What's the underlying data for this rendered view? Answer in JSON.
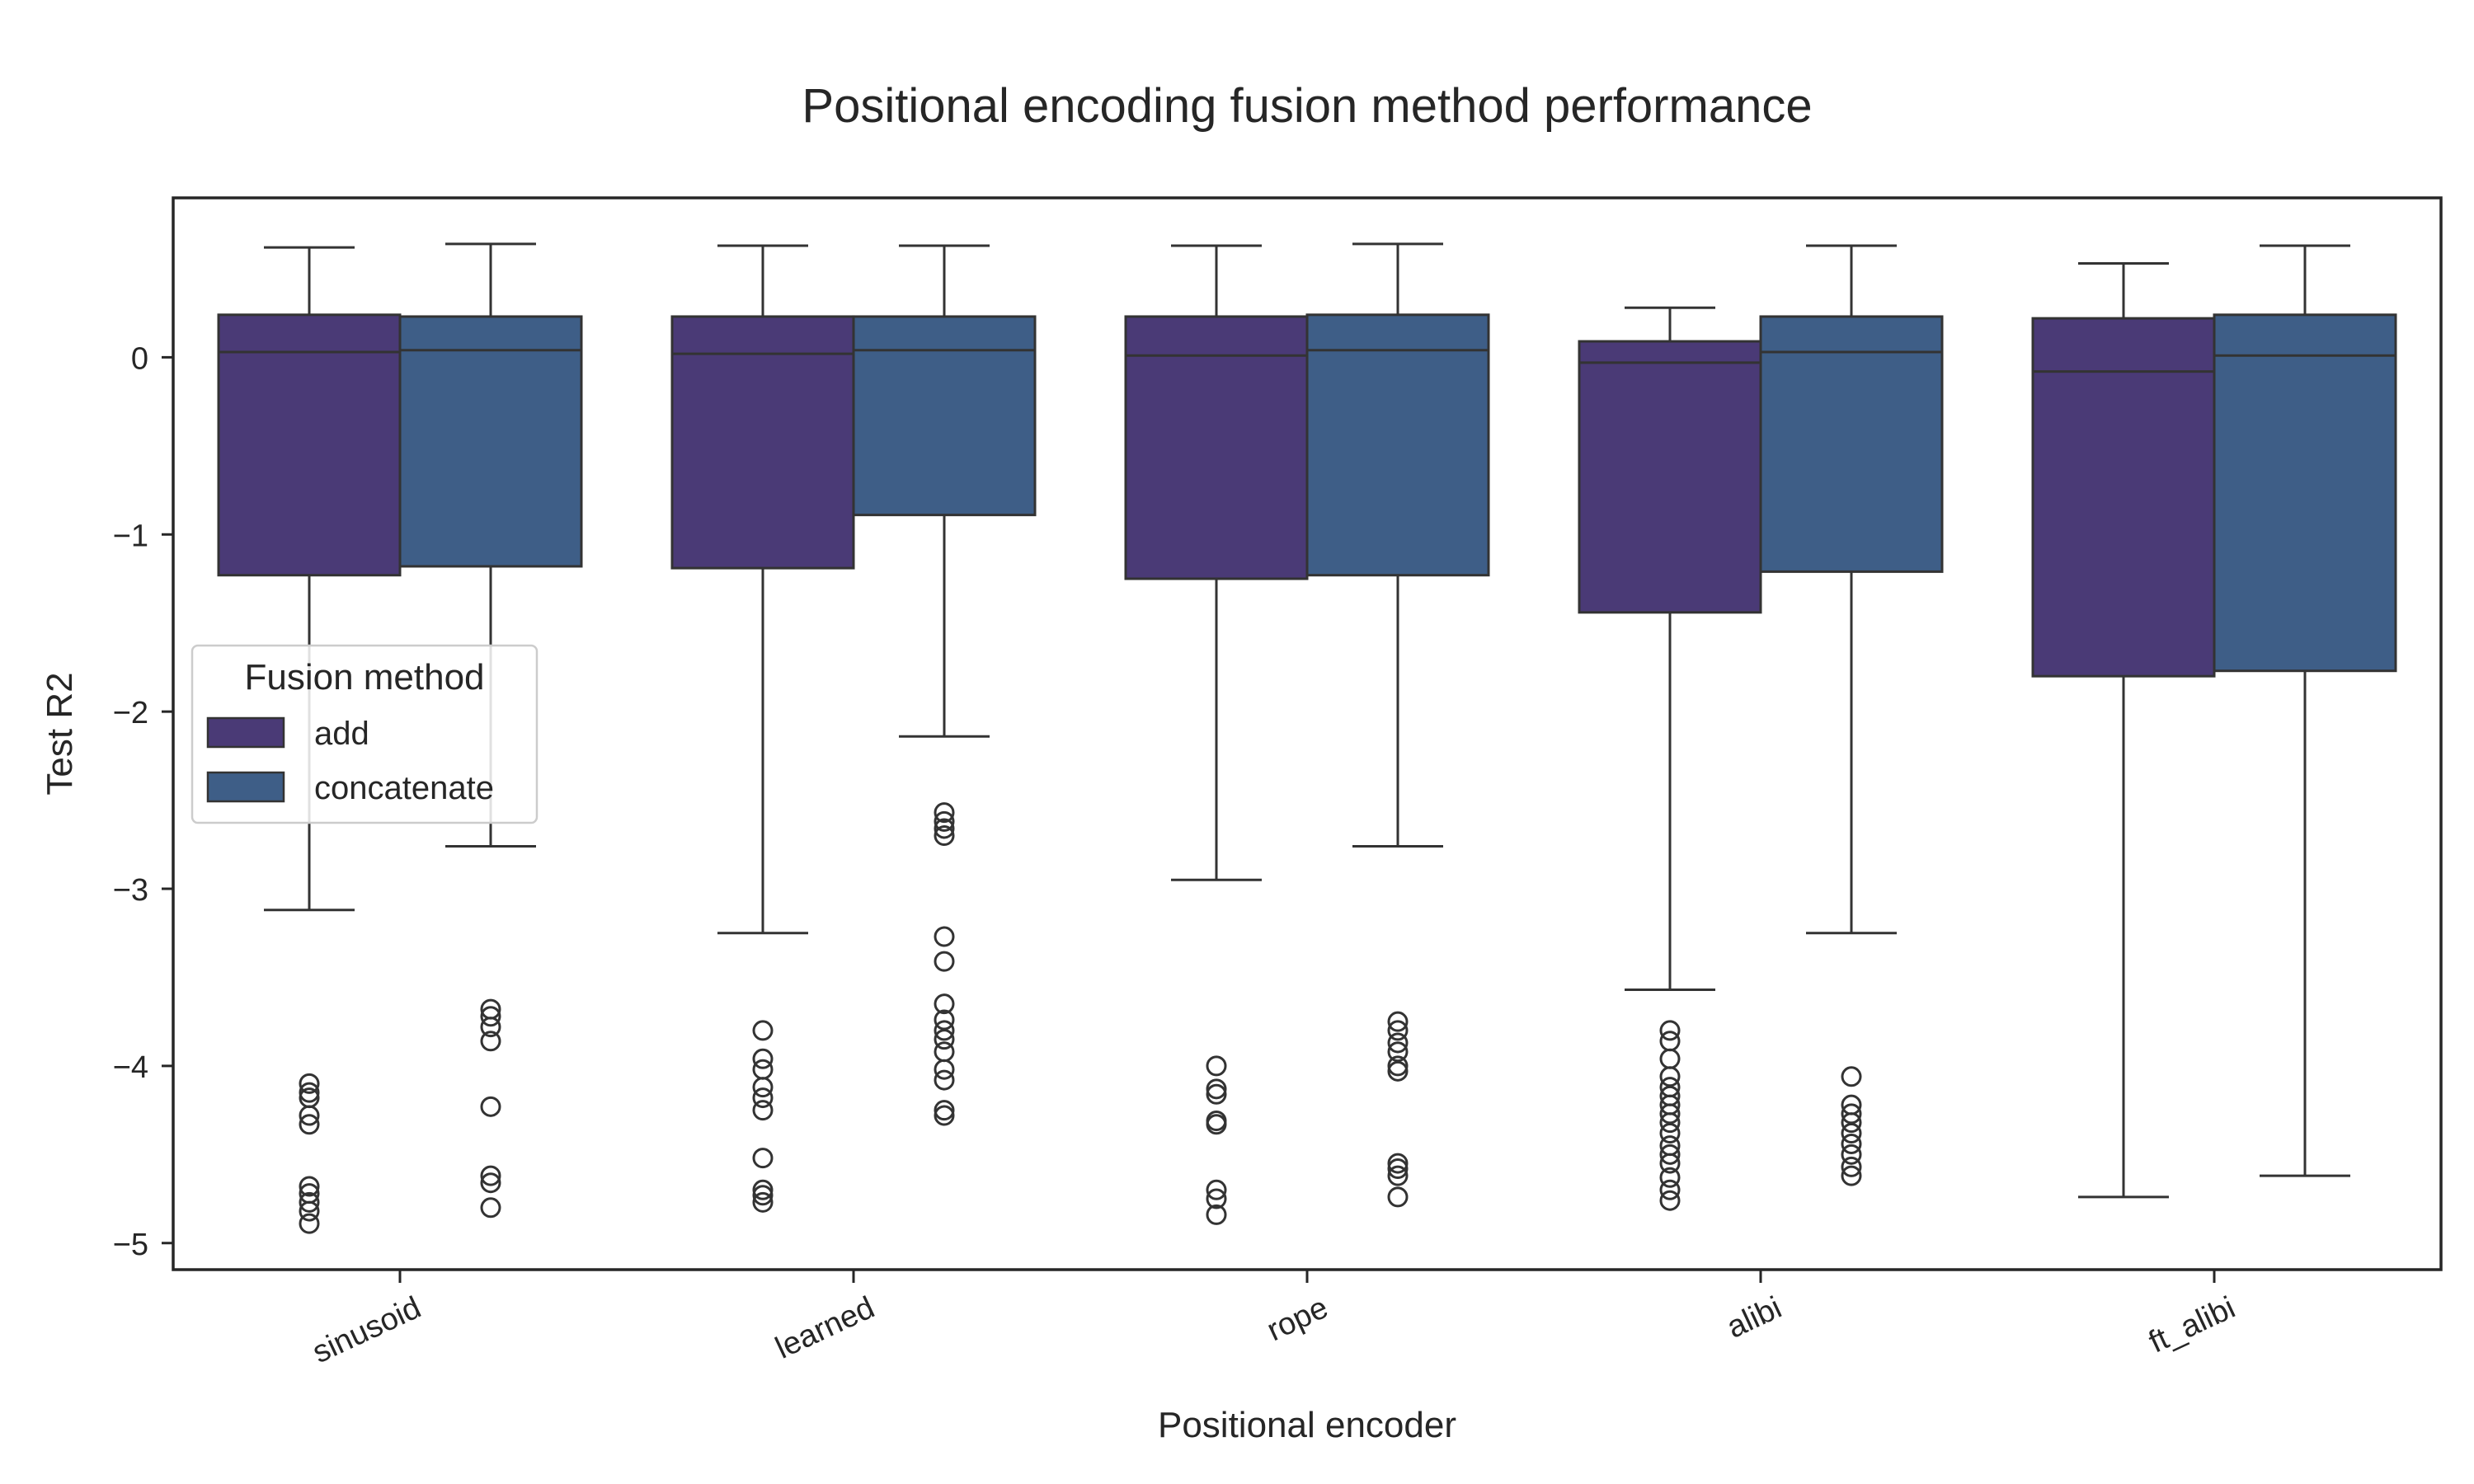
{
  "chart_data": {
    "type": "box",
    "title": "Positional encoding fusion method performance",
    "xlabel": "Positional encoder",
    "ylabel": "Test R2",
    "ylim": [
      -5.15,
      0.9
    ],
    "yticks": [
      0,
      -1,
      -2,
      -3,
      -4,
      -5
    ],
    "ytick_labels": [
      "0",
      "−1",
      "−2",
      "−3",
      "−4",
      "−5"
    ],
    "categories": [
      "sinusoid",
      "learned",
      "rope",
      "alibi",
      "ft_alibi"
    ],
    "grid": false,
    "legend": {
      "title": "Fusion method",
      "position": "center-left",
      "entries": [
        "add",
        "concatenate"
      ]
    },
    "series": [
      {
        "name": "add",
        "color": "#4a3a76",
        "boxes": [
          {
            "whisker_low": -3.12,
            "q1": -1.23,
            "median": 0.03,
            "q3": 0.24,
            "whisker_high": 0.62,
            "outliers": [
              -4.1,
              -4.15,
              -4.18,
              -4.28,
              -4.33,
              -4.68,
              -4.72,
              -4.77,
              -4.82,
              -4.89
            ]
          },
          {
            "whisker_low": -3.25,
            "q1": -1.19,
            "median": 0.02,
            "q3": 0.23,
            "whisker_high": 0.63,
            "outliers": [
              -3.8,
              -3.96,
              -4.02,
              -4.12,
              -4.18,
              -4.25,
              -4.52,
              -4.7,
              -4.73,
              -4.77
            ]
          },
          {
            "whisker_low": -2.95,
            "q1": -1.25,
            "median": 0.01,
            "q3": 0.23,
            "whisker_high": 0.63,
            "outliers": [
              -4.0,
              -4.13,
              -4.16,
              -4.31,
              -4.33,
              -4.7,
              -4.75,
              -4.84
            ]
          },
          {
            "whisker_low": -3.57,
            "q1": -1.44,
            "median": -0.03,
            "q3": 0.09,
            "whisker_high": 0.28,
            "outliers": [
              -3.8,
              -3.86,
              -3.96,
              -4.06,
              -4.12,
              -4.17,
              -4.22,
              -4.27,
              -4.32,
              -4.38,
              -4.45,
              -4.5,
              -4.55,
              -4.63,
              -4.7,
              -4.76
            ]
          },
          {
            "whisker_low": -4.74,
            "q1": -1.8,
            "median": -0.08,
            "q3": 0.22,
            "whisker_high": 0.53,
            "outliers": []
          }
        ]
      },
      {
        "name": "concatenate",
        "color": "#3e5e87",
        "boxes": [
          {
            "whisker_low": -2.76,
            "q1": -1.18,
            "median": 0.04,
            "q3": 0.23,
            "whisker_high": 0.64,
            "outliers": [
              -3.68,
              -3.72,
              -3.78,
              -3.86,
              -4.23,
              -4.62,
              -4.66,
              -4.8
            ]
          },
          {
            "whisker_low": -2.14,
            "q1": -0.89,
            "median": 0.04,
            "q3": 0.23,
            "whisker_high": 0.63,
            "outliers": [
              -2.57,
              -2.62,
              -2.66,
              -2.7,
              -3.27,
              -3.41,
              -3.65,
              -3.74,
              -3.8,
              -3.85,
              -3.92,
              -4.02,
              -4.08,
              -4.25,
              -4.28
            ]
          },
          {
            "whisker_low": -2.76,
            "q1": -1.23,
            "median": 0.04,
            "q3": 0.24,
            "whisker_high": 0.64,
            "outliers": [
              -3.75,
              -3.8,
              -3.87,
              -3.92,
              -4.0,
              -4.03,
              -4.55,
              -4.58,
              -4.62,
              -4.74
            ]
          },
          {
            "whisker_low": -3.25,
            "q1": -1.21,
            "median": 0.03,
            "q3": 0.23,
            "whisker_high": 0.63,
            "outliers": [
              -4.06,
              -4.22,
              -4.27,
              -4.32,
              -4.38,
              -4.44,
              -4.5,
              -4.57,
              -4.62
            ]
          },
          {
            "whisker_low": -4.62,
            "q1": -1.77,
            "median": 0.01,
            "q3": 0.24,
            "whisker_high": 0.63,
            "outliers": []
          }
        ]
      }
    ]
  }
}
